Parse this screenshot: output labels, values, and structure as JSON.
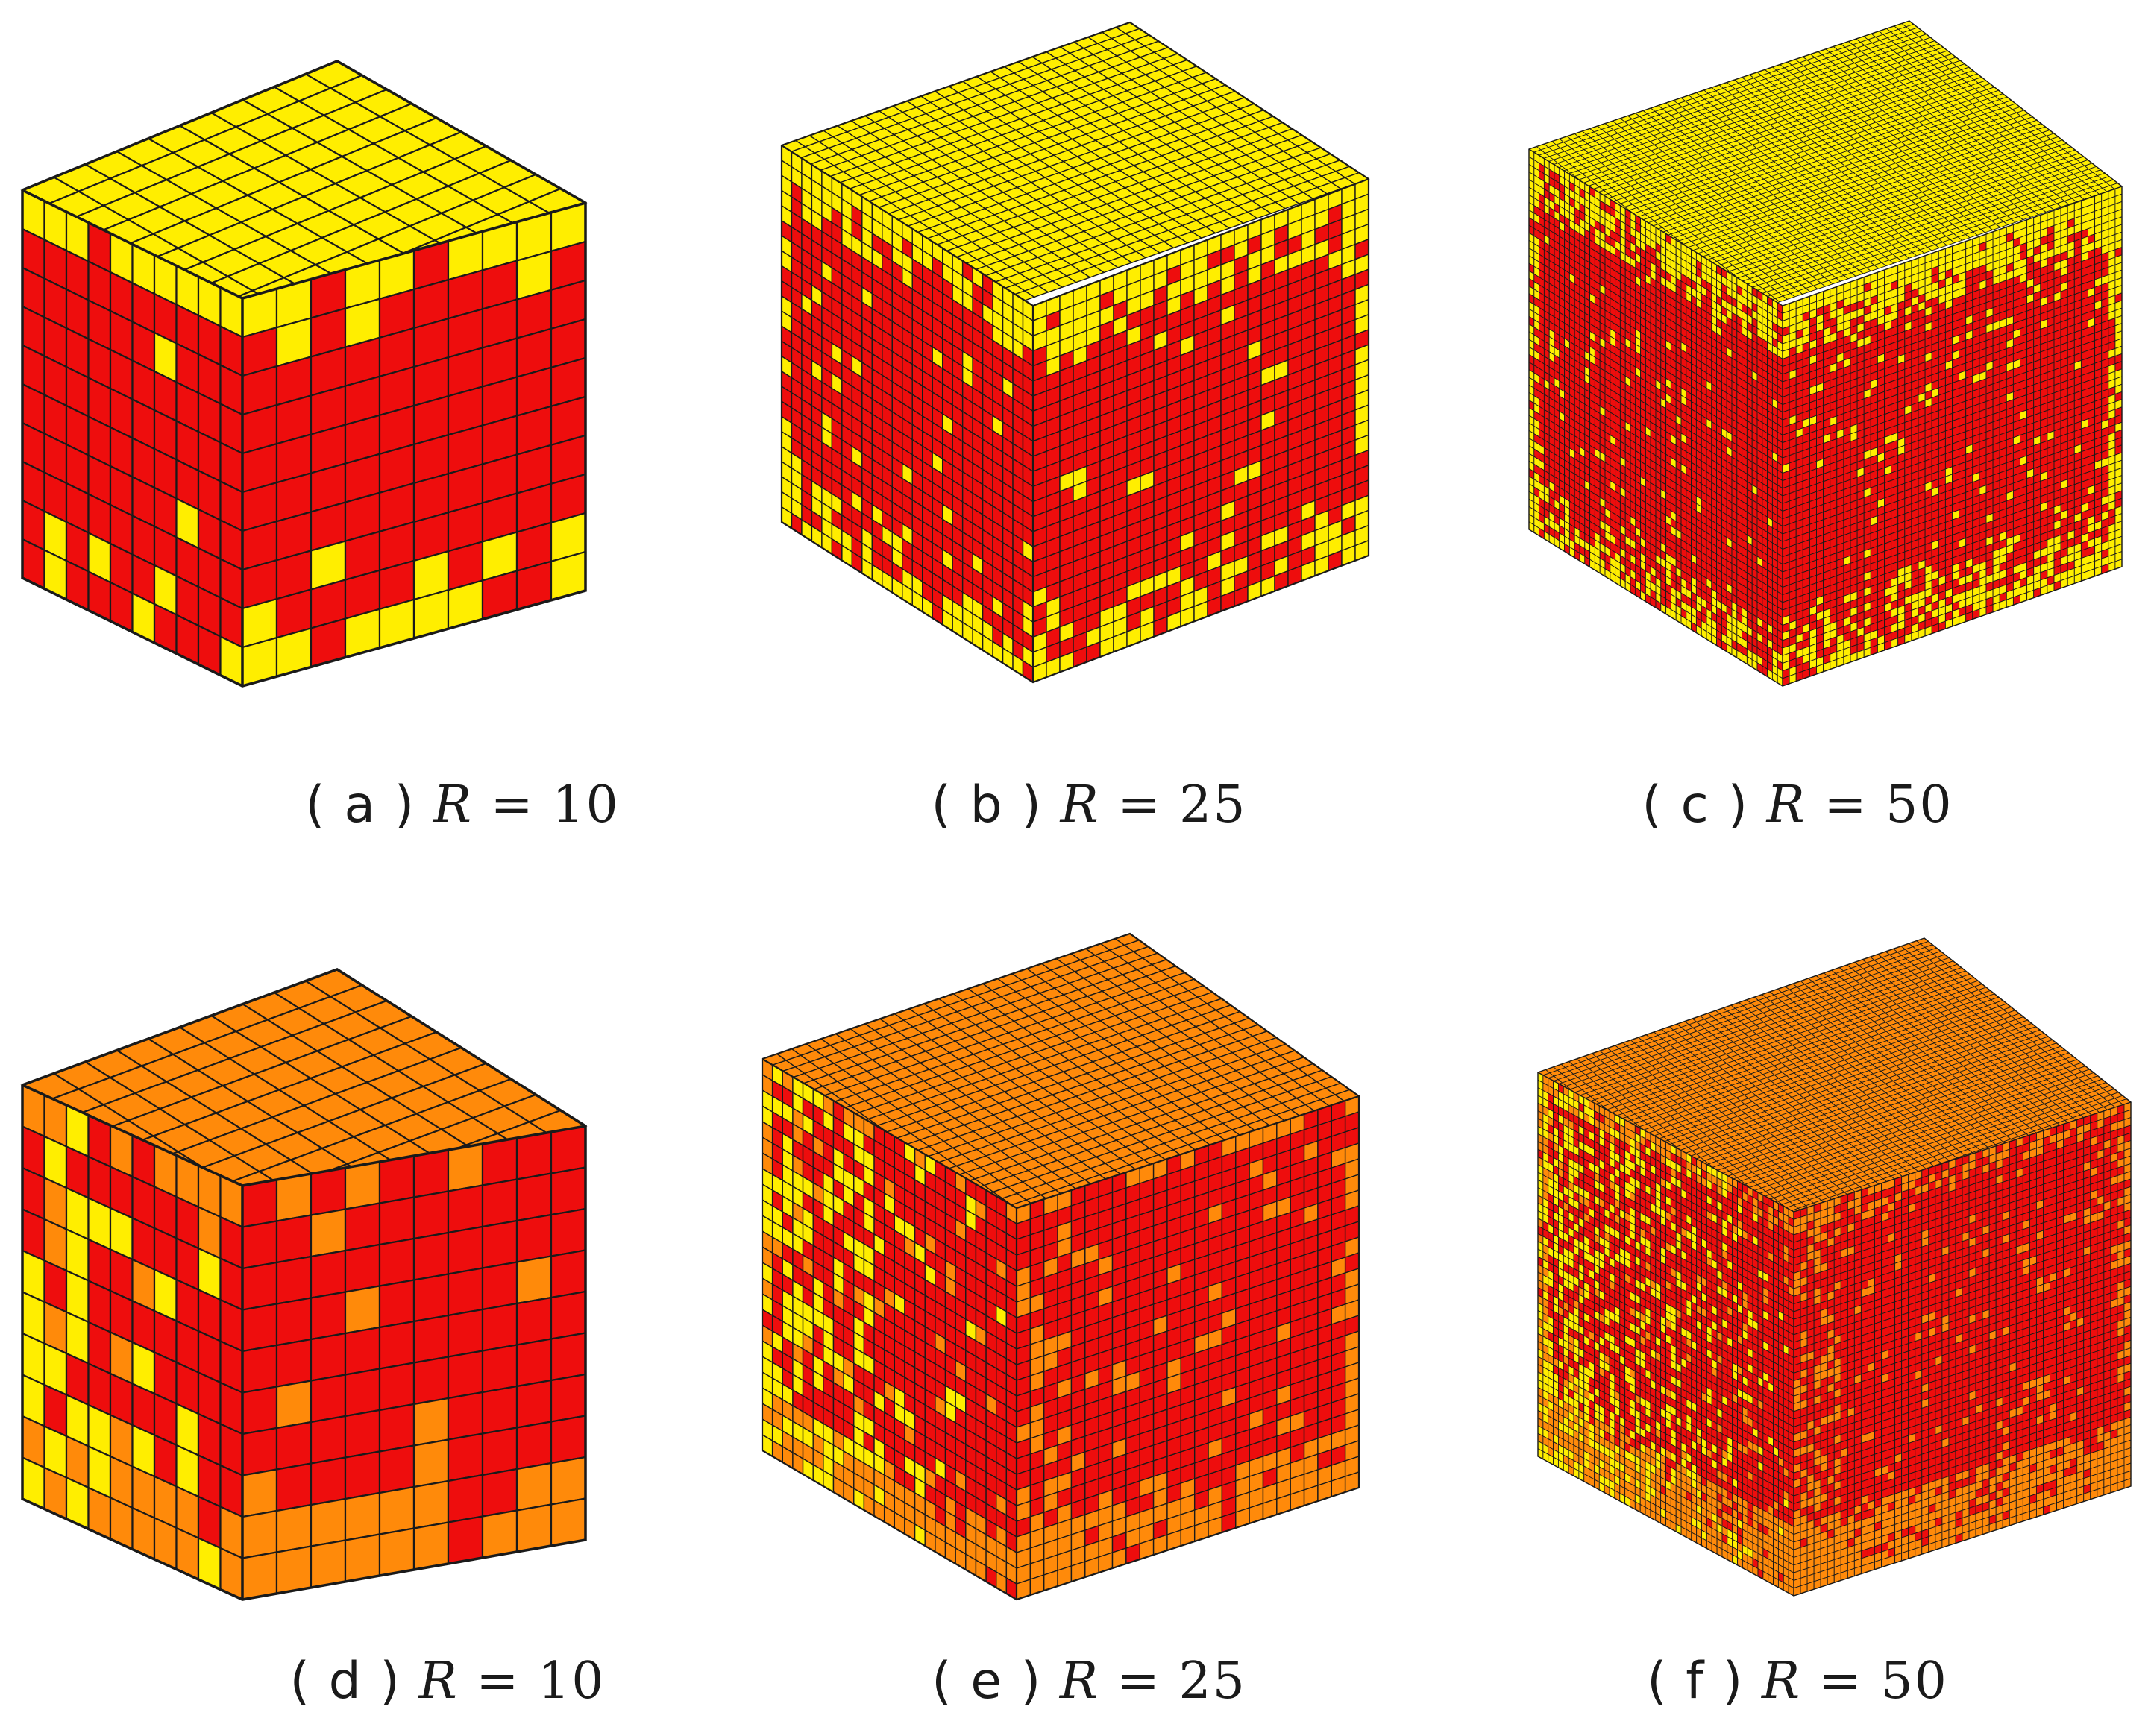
{
  "colors": {
    "yellow": "#ffee00",
    "red": "#ee0d0d",
    "orange": "#ff8a0a",
    "grid_line": "#1a1a1a",
    "background": "#ffffff"
  },
  "panels": [
    {
      "id": "a",
      "label": "a",
      "R_symbol": "R",
      "eq": "=",
      "R_value": "10",
      "resolution": 10,
      "row": "top",
      "surface_color": "yellow",
      "interior_color": "red"
    },
    {
      "id": "b",
      "label": "b",
      "R_symbol": "R",
      "eq": "=",
      "R_value": "25",
      "resolution": 25,
      "row": "top",
      "surface_color": "yellow",
      "interior_color": "red"
    },
    {
      "id": "c",
      "label": "c",
      "R_symbol": "R",
      "eq": "=",
      "R_value": "50",
      "resolution": 50,
      "row": "top",
      "surface_color": "yellow",
      "interior_color": "red"
    },
    {
      "id": "d",
      "label": "d",
      "R_symbol": "R",
      "eq": "=",
      "R_value": "10",
      "resolution": 10,
      "row": "bottom",
      "surface_color": "orange",
      "interior_color": "red",
      "accent_color": "yellow"
    },
    {
      "id": "e",
      "label": "e",
      "R_symbol": "R",
      "eq": "=",
      "R_value": "25",
      "resolution": 25,
      "row": "bottom",
      "surface_color": "orange",
      "interior_color": "red",
      "accent_color": "yellow"
    },
    {
      "id": "f",
      "label": "f",
      "R_symbol": "R",
      "eq": "=",
      "R_value": "50",
      "resolution": 50,
      "row": "bottom",
      "surface_color": "orange",
      "interior_color": "red",
      "accent_color": "yellow"
    }
  ]
}
